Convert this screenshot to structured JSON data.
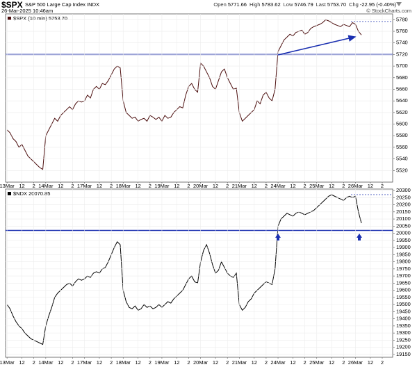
{
  "header": {
    "symbol": "$SPX",
    "name": "S&P 500 Large Cap Index INDX",
    "datetime": "26-Mar-2025 10:46am",
    "quote": [
      {
        "label": "Open",
        "value": "5771.66"
      },
      {
        "label": "High",
        "value": "5783.62"
      },
      {
        "label": "Low",
        "value": "5746.79"
      },
      {
        "label": "Last",
        "value": "5753.70"
      },
      {
        "label": "Chg",
        "value": "-22.95 (-0.40%)"
      }
    ],
    "credit": "© StockCharts.com"
  },
  "chart_data": [
    {
      "type": "line",
      "legend": "$SPX (10 min) 5753.70",
      "ylim": [
        5500,
        5790
      ],
      "yticks": [
        5520,
        5540,
        5560,
        5580,
        5600,
        5620,
        5640,
        5660,
        5680,
        5700,
        5720,
        5740,
        5760,
        5780
      ],
      "grid": true,
      "hlines": [
        {
          "value": 5720,
          "color": "#1a2fb0"
        }
      ],
      "categories": [
        "13Mar",
        null,
        null,
        null,
        null,
        "12",
        null,
        null,
        null,
        "2",
        null,
        null,
        null,
        "14Mar",
        null,
        null,
        null,
        null,
        "12",
        null,
        null,
        null,
        "2",
        null,
        null,
        null,
        "17Mar",
        null,
        null,
        null,
        null,
        "12",
        null,
        null,
        null,
        "2",
        null,
        null,
        null,
        "18Mar",
        null,
        null,
        null,
        null,
        "12",
        null,
        null,
        null,
        "2",
        null,
        null,
        null,
        "19Mar",
        null,
        null,
        null,
        null,
        "12",
        null,
        null,
        null,
        "2",
        null,
        null,
        null,
        "20Mar",
        null,
        null,
        null,
        null,
        "12",
        null,
        null,
        null,
        "2",
        null,
        null,
        null,
        "21Mar",
        null,
        null,
        null,
        null,
        "12",
        null,
        null,
        null,
        "2",
        null,
        null,
        null,
        "24Mar",
        null,
        null,
        null,
        null,
        "12",
        null,
        null,
        null,
        "2",
        null,
        null,
        null,
        "25Mar",
        null,
        null,
        null,
        null,
        "12",
        null,
        null,
        null,
        "2",
        null,
        null,
        null,
        "26Mar",
        null,
        null,
        null,
        null,
        "12",
        null,
        null,
        null,
        "2",
        null,
        null,
        null
      ],
      "series": [
        {
          "name": "$SPX",
          "color": "#4a0c0c",
          "values": [
            5590,
            5585,
            5575,
            5570,
            5560,
            5565,
            5555,
            5545,
            5540,
            5535,
            5530,
            5525,
            5522,
            5580,
            5590,
            5600,
            5610,
            5605,
            5615,
            5620,
            5625,
            5630,
            5625,
            5635,
            5640,
            5638,
            5640,
            5650,
            5645,
            5660,
            5665,
            5660,
            5670,
            5668,
            5675,
            5685,
            5695,
            5700,
            5697,
            5640,
            5620,
            5615,
            5610,
            5612,
            5605,
            5608,
            5610,
            5605,
            5615,
            5612,
            5608,
            5612,
            5605,
            5615,
            5610,
            5612,
            5620,
            5625,
            5630,
            5628,
            5650,
            5665,
            5670,
            5660,
            5655,
            5705,
            5700,
            5690,
            5680,
            5665,
            5660,
            5675,
            5690,
            5695,
            5680,
            5670,
            5660,
            5662,
            5620,
            5605,
            5610,
            5615,
            5620,
            5625,
            5640,
            5635,
            5650,
            5655,
            5645,
            5640,
            5660,
            5725,
            5735,
            5745,
            5750,
            5755,
            5752,
            5758,
            5760,
            5762,
            5755,
            5758,
            5765,
            5768,
            5770,
            5772,
            5775,
            5780,
            5778,
            5775,
            5772,
            5770,
            5768,
            5772,
            5770,
            5768,
            5775,
            5772,
            5760,
            5753.7,
            null,
            null,
            null,
            null,
            null,
            null,
            null,
            null,
            null,
            null
          ]
        }
      ]
    },
    {
      "type": "line",
      "legend": "$NDX 20070.85",
      "ylim": [
        19130,
        20310
      ],
      "yticks": [
        19150,
        19200,
        19250,
        19300,
        19350,
        19400,
        19450,
        19500,
        19550,
        19600,
        19650,
        19700,
        19750,
        19800,
        19850,
        19900,
        19950,
        20000,
        20050,
        20100,
        20150,
        20200,
        20250,
        20300
      ],
      "grid": true,
      "hlines": [
        {
          "value": 20020,
          "color": "#1a2fb0"
        }
      ],
      "categories": [
        "13Mar",
        null,
        null,
        null,
        null,
        "12",
        null,
        null,
        null,
        "2",
        null,
        null,
        null,
        "14Mar",
        null,
        null,
        null,
        null,
        "12",
        null,
        null,
        null,
        "2",
        null,
        null,
        null,
        "17Mar",
        null,
        null,
        null,
        null,
        "12",
        null,
        null,
        null,
        "2",
        null,
        null,
        null,
        "18Mar",
        null,
        null,
        null,
        null,
        "12",
        null,
        null,
        null,
        "2",
        null,
        null,
        null,
        "19Mar",
        null,
        null,
        null,
        null,
        "12",
        null,
        null,
        null,
        "2",
        null,
        null,
        null,
        "20Mar",
        null,
        null,
        null,
        null,
        "12",
        null,
        null,
        null,
        "2",
        null,
        null,
        null,
        "21Mar",
        null,
        null,
        null,
        null,
        "12",
        null,
        null,
        null,
        "2",
        null,
        null,
        null,
        "24Mar",
        null,
        null,
        null,
        null,
        "12",
        null,
        null,
        null,
        "2",
        null,
        null,
        null,
        "25Mar",
        null,
        null,
        null,
        null,
        "12",
        null,
        null,
        null,
        "2",
        null,
        null,
        null,
        "26Mar",
        null,
        null,
        null,
        null,
        "12",
        null,
        null,
        null,
        "2",
        null,
        null,
        null
      ],
      "series": [
        {
          "name": "$NDX",
          "color": "#000000",
          "values": [
            19500,
            19470,
            19420,
            19380,
            19350,
            19330,
            19300,
            19280,
            19260,
            19250,
            19240,
            19230,
            19220,
            19350,
            19420,
            19480,
            19550,
            19580,
            19600,
            19620,
            19640,
            19650,
            19630,
            19660,
            19680,
            19670,
            19680,
            19700,
            19690,
            19720,
            19730,
            19720,
            19750,
            19760,
            19800,
            19850,
            19900,
            19940,
            19920,
            19600,
            19520,
            19480,
            19470,
            19490,
            19460,
            19470,
            19500,
            19480,
            19490,
            19470,
            19480,
            19500,
            19480,
            19500,
            19520,
            19510,
            19540,
            19560,
            19580,
            19600,
            19640,
            19680,
            19700,
            19660,
            19650,
            19800,
            19880,
            19920,
            19860,
            19780,
            19720,
            19740,
            19800,
            19760,
            19720,
            19700,
            19690,
            19720,
            19500,
            19460,
            19480,
            19520,
            19540,
            19580,
            19600,
            19620,
            19640,
            19660,
            19650,
            19640,
            19750,
            20050,
            20100,
            20120,
            20140,
            20130,
            20120,
            20140,
            20150,
            20140,
            20130,
            20140,
            20150,
            20160,
            20180,
            20200,
            20220,
            20240,
            20260,
            20270,
            20260,
            20250,
            20240,
            20230,
            20250,
            20260,
            20250,
            20260,
            20150,
            20070.85,
            null,
            null,
            null,
            null,
            null,
            null,
            null,
            null,
            null,
            null
          ]
        }
      ]
    }
  ]
}
